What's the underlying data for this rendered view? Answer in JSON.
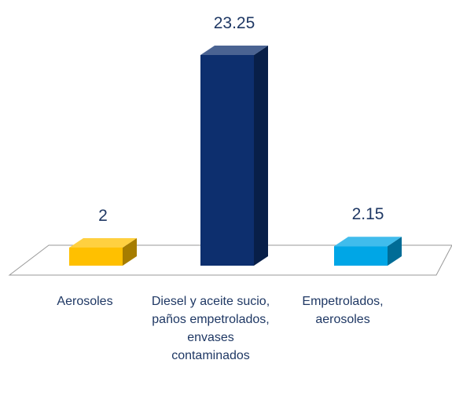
{
  "chart_data": {
    "type": "bar3d",
    "categories": [
      "Aerosoles",
      "Diesel y aceite sucio, paños empetrolados, envases contaminados",
      "Empetrolados, aerosoles"
    ],
    "values": [
      2,
      23.25,
      2.15
    ],
    "colors": [
      "#ffc000",
      "#0d2f6e",
      "#00a6e6"
    ]
  }
}
